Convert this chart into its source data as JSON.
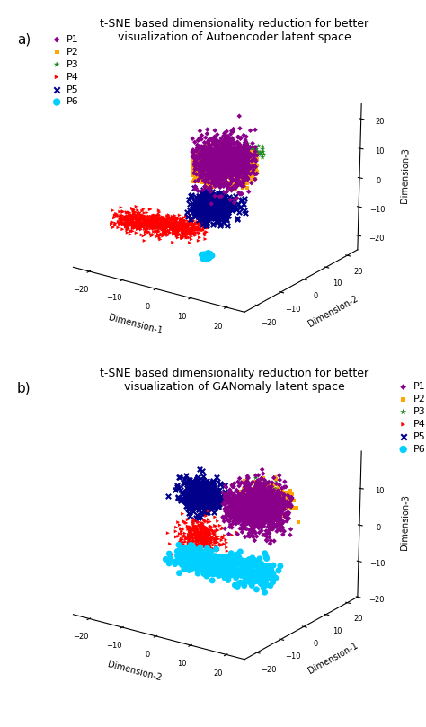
{
  "title_a": "t-SNE based dimensionality reduction for better\nvisualization of Autoencoder latent space",
  "title_b": "t-SNE based dimensionality reduction for better\nvisualization of GANomaly latent space",
  "label_a": "a)",
  "label_b": "b)",
  "classes": [
    "P1",
    "P2",
    "P3",
    "P4",
    "P5",
    "P6"
  ],
  "colors": [
    "#8B008B",
    "#FFA500",
    "#228B22",
    "#FF0000",
    "#00008B",
    "#00CFFF"
  ],
  "markers": [
    "D",
    "s",
    "*",
    ">",
    "x",
    "o"
  ],
  "marker_sizes_a": [
    8,
    8,
    20,
    8,
    15,
    25
  ],
  "marker_sizes_b": [
    8,
    8,
    20,
    8,
    15,
    25
  ],
  "xlabel_a": "Dimension-1",
  "ylabel_a": "Dimension-2",
  "zlabel_a": "Dimension-3",
  "xlabel_b": "Dimension-2",
  "ylabel_b": "Dimension-1",
  "zlabel_b": "Dimension-3",
  "background_color": "#ffffff",
  "title_fontsize": 9,
  "label_fontsize": 11,
  "axis_fontsize": 7,
  "tick_fontsize": 6,
  "legend_fontsize": 8
}
